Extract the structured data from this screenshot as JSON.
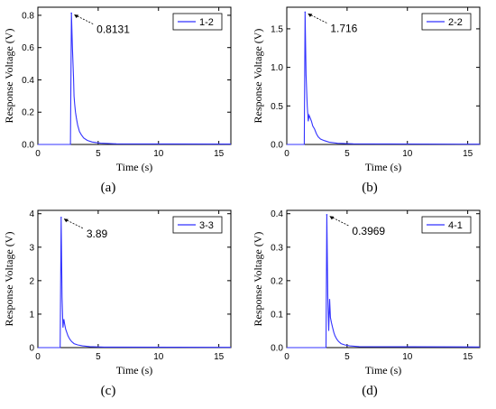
{
  "line_color": "#3333ff",
  "chart_data": [
    {
      "type": "line",
      "caption": "(a)",
      "xlabel": "Time (s)",
      "ylabel": "Response Voltage (V)",
      "xlim": [
        0,
        16
      ],
      "ylim": [
        0,
        0.85
      ],
      "xticks": [
        0,
        5,
        10,
        15
      ],
      "xtick_labels": [
        "0",
        "5",
        "10",
        "15"
      ],
      "yticks": [
        0,
        0.2,
        0.4,
        0.6,
        0.8
      ],
      "ytick_labels": [
        "0.0",
        "0.2",
        "0.4",
        "0.6",
        "0.8"
      ],
      "legend": "1-2",
      "legend_position": "top-right",
      "annotation": "0.8131",
      "series": [
        {
          "x": [
            0,
            2.7,
            2.78,
            2.86,
            2.95,
            3.0,
            3.05,
            3.12,
            3.2,
            3.3,
            3.45,
            3.6,
            3.8,
            4.1,
            4.5,
            5.2,
            6.5,
            16
          ],
          "y": [
            0,
            0,
            0.8131,
            0.6,
            0.42,
            0.3,
            0.25,
            0.2,
            0.16,
            0.12,
            0.08,
            0.06,
            0.04,
            0.025,
            0.015,
            0.008,
            0.004,
            0.002
          ]
        }
      ]
    },
    {
      "type": "line",
      "caption": "(b)",
      "xlabel": "Time (s)",
      "ylabel": "Response Voltage (V)",
      "xlim": [
        0,
        16
      ],
      "ylim": [
        0,
        1.78
      ],
      "xticks": [
        0,
        5,
        10,
        15
      ],
      "xtick_labels": [
        "0",
        "5",
        "10",
        "15"
      ],
      "yticks": [
        0,
        0.5,
        1.0,
        1.5
      ],
      "ytick_labels": [
        "0.0",
        "0.5",
        "1.0",
        "1.5"
      ],
      "legend": "2-2",
      "legend_position": "top-right",
      "annotation": "1.716",
      "series": [
        {
          "x": [
            0,
            1.45,
            1.52,
            1.6,
            1.7,
            1.78,
            1.85,
            1.95,
            2.05,
            2.15,
            2.3,
            2.45,
            2.6,
            2.8,
            3.1,
            3.5,
            4.2,
            5.5,
            16
          ],
          "y": [
            0,
            0,
            1.716,
            0.9,
            0.5,
            0.3,
            0.38,
            0.34,
            0.3,
            0.24,
            0.2,
            0.14,
            0.1,
            0.07,
            0.05,
            0.03,
            0.015,
            0.008,
            0.004
          ]
        }
      ]
    },
    {
      "type": "line",
      "caption": "(c)",
      "xlabel": "Time (s)",
      "ylabel": "Response Voltage (V)",
      "xlim": [
        0,
        16
      ],
      "ylim": [
        0,
        4.1
      ],
      "xticks": [
        0,
        5,
        10,
        15
      ],
      "xtick_labels": [
        "0",
        "5",
        "10",
        "15"
      ],
      "yticks": [
        0,
        1,
        2,
        3,
        4
      ],
      "ytick_labels": [
        "0",
        "1",
        "2",
        "3",
        "4"
      ],
      "legend": "3-3",
      "legend_position": "top-right",
      "annotation": "3.89",
      "series": [
        {
          "x": [
            0,
            1.85,
            1.93,
            2.0,
            2.08,
            2.15,
            2.22,
            2.3,
            2.4,
            2.5,
            2.65,
            2.8,
            3.0,
            3.3,
            3.7,
            4.3,
            5.5,
            16
          ],
          "y": [
            0,
            0,
            3.89,
            1.5,
            0.6,
            0.85,
            0.7,
            0.55,
            0.45,
            0.35,
            0.25,
            0.18,
            0.12,
            0.08,
            0.05,
            0.03,
            0.015,
            0.008
          ]
        }
      ]
    },
    {
      "type": "line",
      "caption": "(d)",
      "xlabel": "Time (s)",
      "ylabel": "Response Voltage (V)",
      "xlim": [
        0,
        16
      ],
      "ylim": [
        0,
        0.41
      ],
      "xticks": [
        0,
        5,
        10,
        15
      ],
      "xtick_labels": [
        "0",
        "5",
        "10",
        "15"
      ],
      "yticks": [
        0,
        0.1,
        0.2,
        0.3,
        0.4
      ],
      "ytick_labels": [
        "0.0",
        "0.1",
        "0.2",
        "0.3",
        "0.4"
      ],
      "legend": "4-1",
      "legend_position": "top-right",
      "annotation": "0.3969",
      "series": [
        {
          "x": [
            0,
            3.25,
            3.32,
            3.4,
            3.48,
            3.55,
            3.62,
            3.7,
            3.8,
            3.9,
            4.0,
            4.15,
            4.3,
            4.5,
            4.8,
            5.2,
            6.0,
            16
          ],
          "y": [
            0,
            0,
            0.3969,
            0.15,
            0.05,
            0.145,
            0.09,
            0.075,
            0.06,
            0.045,
            0.035,
            0.025,
            0.018,
            0.012,
            0.008,
            0.005,
            0.003,
            0.002
          ]
        }
      ]
    }
  ]
}
